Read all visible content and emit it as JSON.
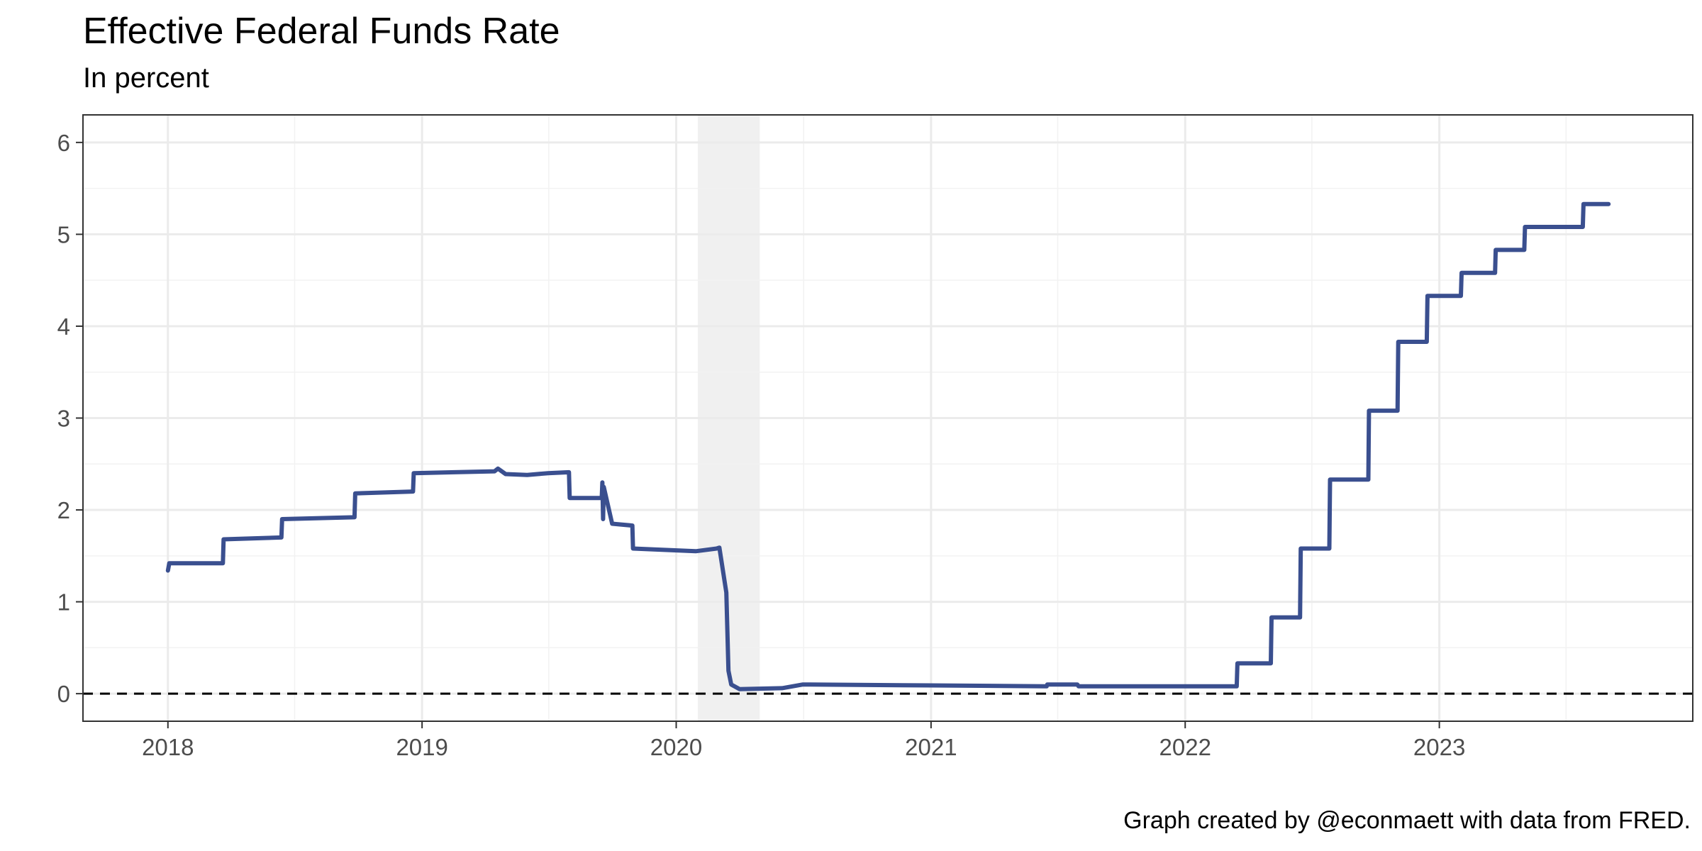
{
  "chart_data": {
    "type": "line",
    "title": "Effective Federal Funds Rate",
    "subtitle": "In percent",
    "caption": "Graph created by @econmaett with data from FRED.",
    "xlabel": "",
    "ylabel": "",
    "x_range": [
      "2017-09-01",
      "2023-12-31"
    ],
    "ylim": [
      -0.3,
      6.3
    ],
    "x_ticks": [
      "2018",
      "2019",
      "2020",
      "2021",
      "2022",
      "2023"
    ],
    "y_ticks": [
      "0",
      "1",
      "2",
      "3",
      "4",
      "5",
      "6"
    ],
    "grid": true,
    "reference_line": {
      "y": 0,
      "style": "dashed",
      "color": "#000000"
    },
    "shaded_regions": [
      {
        "start": "2020-02-01",
        "end": "2020-04-30",
        "color": "#f0f0f0"
      }
    ],
    "series": [
      {
        "color": "#3a4f8f",
        "x": [
          "2018-01-01",
          "2018-01-03",
          "2018-03-21",
          "2018-03-22",
          "2018-06-13",
          "2018-06-14",
          "2018-09-26",
          "2018-09-27",
          "2018-12-19",
          "2018-12-20",
          "2019-04-15",
          "2019-04-20",
          "2019-05-01",
          "2019-06-01",
          "2019-07-01",
          "2019-07-31",
          "2019-08-01",
          "2019-09-16",
          "2019-09-17",
          "2019-09-18",
          "2019-09-19",
          "2019-10-01",
          "2019-10-30",
          "2019-10-31",
          "2020-01-29",
          "2020-02-28",
          "2020-03-03",
          "2020-03-13",
          "2020-03-16",
          "2020-03-20",
          "2020-04-01",
          "2020-06-01",
          "2020-07-01",
          "2021-01-01",
          "2021-06-16",
          "2021-06-17",
          "2021-07-30",
          "2021-08-01",
          "2022-03-16",
          "2022-03-17",
          "2022-05-04",
          "2022-05-05",
          "2022-06-15",
          "2022-06-16",
          "2022-07-27",
          "2022-07-28",
          "2022-09-21",
          "2022-09-22",
          "2022-11-02",
          "2022-11-03",
          "2022-12-14",
          "2022-12-15",
          "2023-02-01",
          "2023-02-02",
          "2023-03-22",
          "2023-03-23",
          "2023-05-03",
          "2023-05-04",
          "2023-07-26",
          "2023-07-27",
          "2023-09-01"
        ],
        "values": [
          1.34,
          1.42,
          1.42,
          1.68,
          1.7,
          1.9,
          1.92,
          2.18,
          2.2,
          2.4,
          2.42,
          2.45,
          2.39,
          2.38,
          2.4,
          2.41,
          2.13,
          2.13,
          2.3,
          1.9,
          2.25,
          1.85,
          1.83,
          1.58,
          1.55,
          1.58,
          1.59,
          1.1,
          0.25,
          0.1,
          0.05,
          0.06,
          0.1,
          0.09,
          0.08,
          0.1,
          0.1,
          0.08,
          0.08,
          0.33,
          0.33,
          0.83,
          0.83,
          1.58,
          1.58,
          2.33,
          2.33,
          3.08,
          3.08,
          3.83,
          3.83,
          4.33,
          4.33,
          4.58,
          4.58,
          4.83,
          4.83,
          5.08,
          5.08,
          5.33,
          5.33
        ]
      }
    ]
  }
}
